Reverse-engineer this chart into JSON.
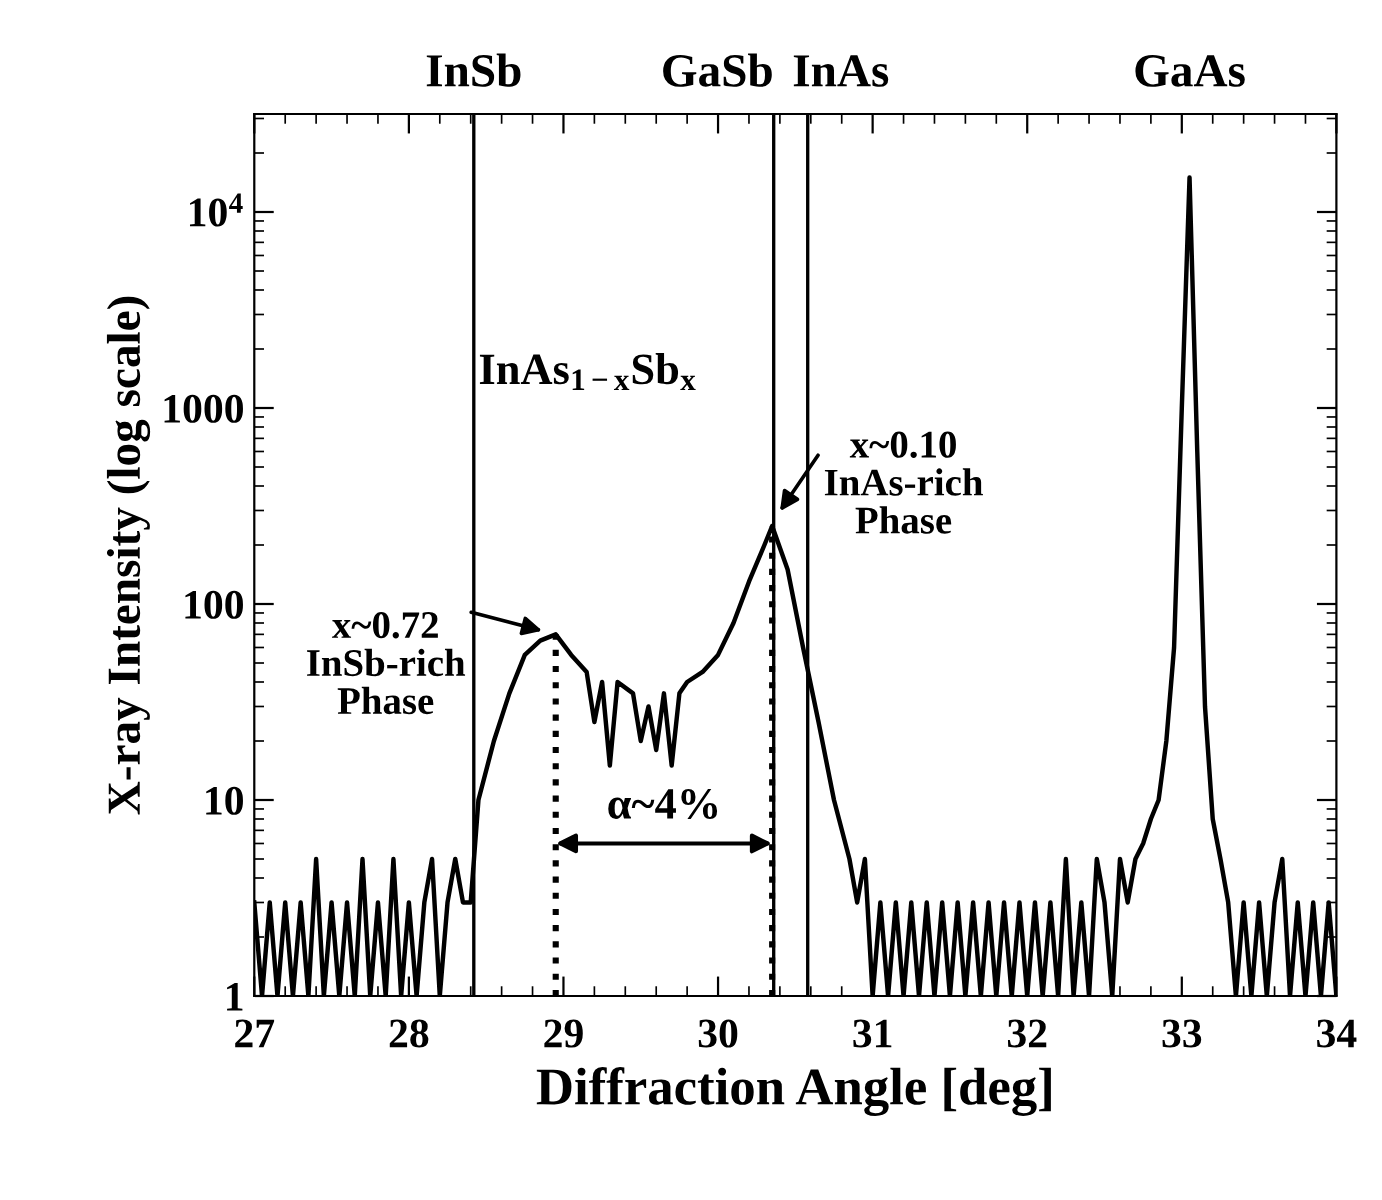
{
  "chart_data": {
    "type": "line",
    "xlabel": "Diffraction Angle [deg]",
    "ylabel": "X-ray Intensity (log scale)",
    "log": "y",
    "xlim": [
      27,
      34
    ],
    "ylim": [
      1,
      31623
    ],
    "xticks": [
      27,
      28,
      29,
      30,
      31,
      32,
      33,
      34
    ],
    "yticks": [
      1,
      10,
      100,
      1000,
      {
        "value": 10000,
        "label": "10$^{4}$"
      }
    ],
    "series": [
      {
        "color": "#000000",
        "line_style": "solid",
        "x": [
          27.0,
          27.05,
          27.1,
          27.15,
          27.2,
          27.25,
          27.3,
          27.35,
          27.4,
          27.45,
          27.5,
          27.55,
          27.6,
          27.65,
          27.7,
          27.75,
          27.8,
          27.85,
          27.9,
          27.95,
          28.0,
          28.05,
          28.1,
          28.15,
          28.2,
          28.25,
          28.3,
          28.35,
          28.4,
          28.45,
          28.55,
          28.65,
          28.75,
          28.85,
          28.95,
          29.05,
          29.15,
          29.2,
          29.25,
          29.3,
          29.35,
          29.45,
          29.5,
          29.55,
          29.6,
          29.65,
          29.7,
          29.75,
          29.8,
          29.9,
          30.0,
          30.1,
          30.2,
          30.3,
          30.35,
          30.45,
          30.55,
          30.65,
          30.75,
          30.85,
          30.9,
          30.95,
          31.0,
          31.05,
          31.1,
          31.15,
          31.2,
          31.25,
          31.3,
          31.35,
          31.4,
          31.45,
          31.5,
          31.55,
          31.6,
          31.65,
          31.7,
          31.75,
          31.8,
          31.85,
          31.9,
          31.95,
          32.0,
          32.05,
          32.1,
          32.15,
          32.2,
          32.25,
          32.3,
          32.35,
          32.4,
          32.45,
          32.5,
          32.55,
          32.6,
          32.65,
          32.7,
          32.75,
          32.8,
          32.85,
          32.9,
          32.95,
          33.0,
          33.05,
          33.1,
          33.15,
          33.2,
          33.25,
          33.3,
          33.35,
          33.4,
          33.45,
          33.5,
          33.55,
          33.6,
          33.65,
          33.7,
          33.75,
          33.8,
          33.85,
          33.9,
          33.95,
          34.0
        ],
        "values": [
          3,
          1,
          3,
          1,
          3,
          1,
          3,
          1,
          5,
          1,
          3,
          1,
          3,
          1,
          5,
          1,
          3,
          1,
          5,
          1,
          3,
          1,
          3,
          5,
          1,
          3,
          5,
          3,
          3,
          10,
          20,
          35,
          55,
          65,
          70,
          55,
          45,
          25,
          40,
          15,
          40,
          35,
          20,
          30,
          18,
          35,
          15,
          35,
          40,
          45,
          55,
          80,
          130,
          200,
          250,
          150,
          60,
          25,
          10,
          5,
          3,
          5,
          1,
          3,
          1,
          3,
          1,
          3,
          1,
          3,
          1,
          3,
          1,
          3,
          1,
          3,
          1,
          3,
          1,
          3,
          1,
          3,
          1,
          3,
          1,
          3,
          1,
          5,
          1,
          3,
          1,
          5,
          3,
          1,
          5,
          3,
          5,
          6,
          8,
          10,
          20,
          60,
          1000,
          15000,
          600,
          30,
          8,
          5,
          3,
          1,
          3,
          1,
          3,
          1,
          3,
          5,
          1,
          3,
          1,
          3,
          1,
          3,
          1
        ]
      },
      {
        "color": "#000000",
        "line_style": "dotted",
        "x": [
          28.95,
          28.95
        ],
        "values": [
          1,
          70
        ]
      },
      {
        "color": "#000000",
        "line_style": "dotted",
        "x": [
          30.35,
          30.35
        ],
        "values": [
          1,
          250
        ]
      }
    ],
    "ref_lines": [
      {
        "axis": "x",
        "value": 28.42,
        "label": "InSb",
        "color": "#000000"
      },
      {
        "axis": "x",
        "value": 30.36,
        "label": "GaSb",
        "color": "#000000"
      },
      {
        "axis": "x",
        "value": 30.58,
        "label": "InAs",
        "color": "#000000"
      }
    ],
    "annotations": [
      "InAs$_{1−x}$Sb$_{x}$",
      {
        "text": "x~0.72\nInSb-rich\nPhase",
        "x": 28.95,
        "y": 70
      },
      {
        "text": "x~0.10\nInAs-rich\nPhase",
        "x": 30.35,
        "y": 260
      },
      "α~4%",
      {
        "text": "GaAs",
        "x": 33.05,
        "y": 15000
      }
    ]
  }
}
